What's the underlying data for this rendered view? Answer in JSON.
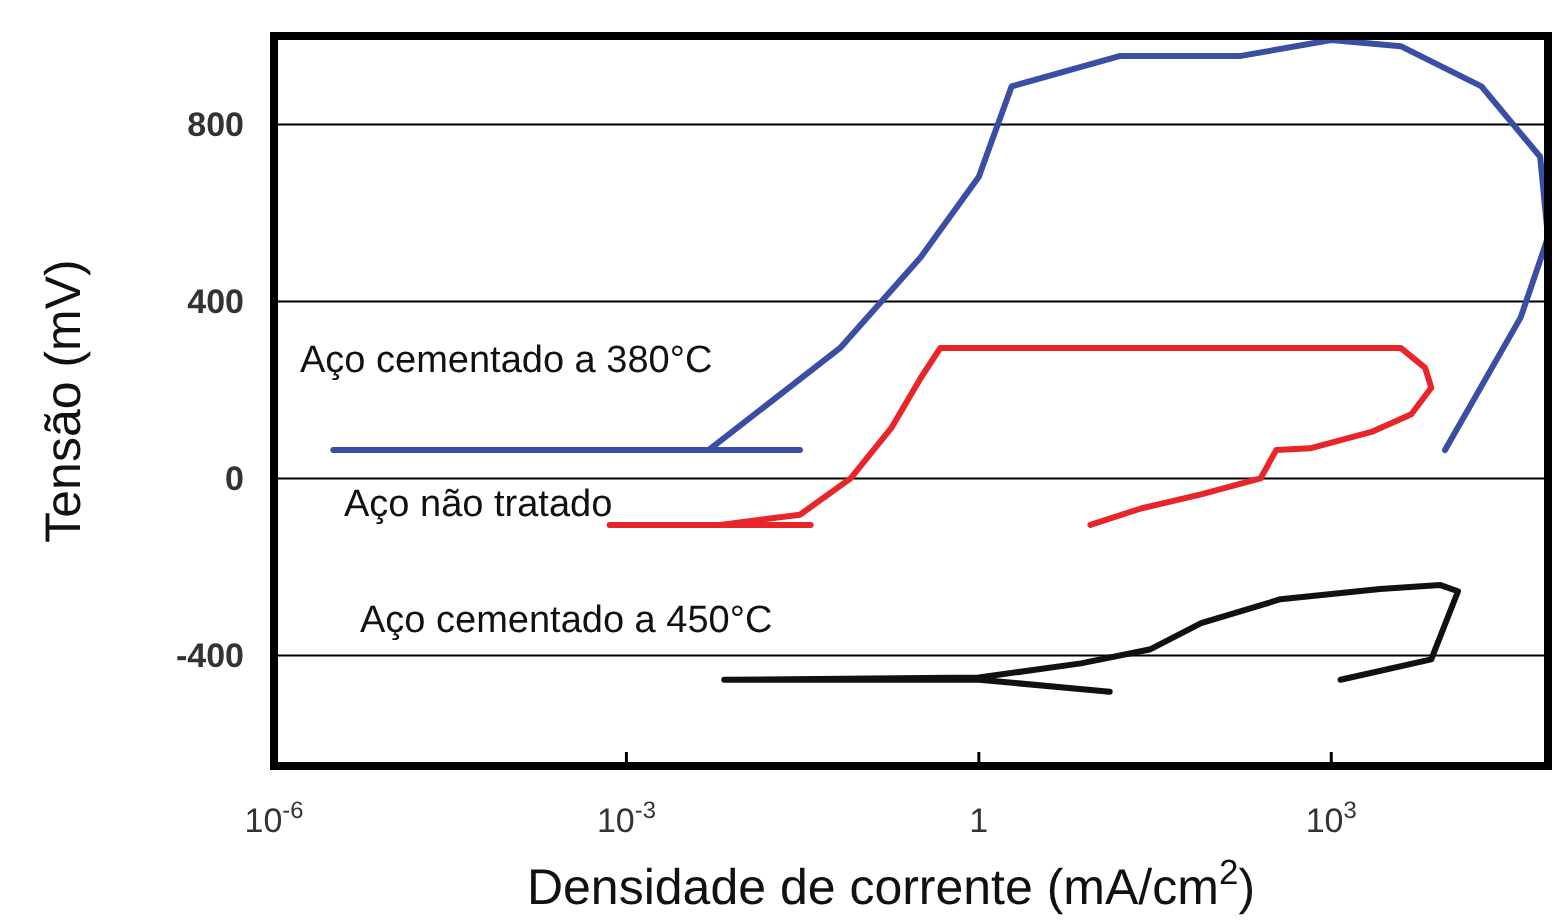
{
  "chart_data": {
    "type": "line",
    "xlabel": "Densidade de corrente (mA/cm$^{2}$)",
    "ylabel": "Tensão (mV)",
    "log": "x",
    "xlim": [
      1e-06,
      70000
    ],
    "ylim": [
      -650,
      1000
    ],
    "xticks": [
      {
        "value": 1e-06,
        "label": "10$^{-6}$"
      },
      {
        "value": 0.001,
        "label": "10$^{-3}$"
      },
      1,
      {
        "value": 1000,
        "label": "10$^{3}$"
      }
    ],
    "yticks": [
      -400,
      0,
      400,
      800
    ],
    "grid": "y",
    "marker": "none",
    "line_style": "solid",
    "series": [
      {
        "name": "Aço cementado a 380°C",
        "color": "#3a4fa3",
        "x": [
          3.2e-06,
          0.03,
          0.005,
          0.066,
          0.32,
          1.0,
          1.9,
          16,
          170,
          1000,
          3900,
          19000,
          60000,
          70000,
          41000,
          9300
        ],
        "values": [
          64,
          64,
          64,
          295,
          500,
          682,
          886,
          955,
          955,
          991,
          977,
          886,
          727,
          545,
          364,
          64
        ]
      },
      {
        "name": "Aço não tratado",
        "color": "#e8262a",
        "x": [
          0.00072,
          0.037,
          0.0063,
          0.03,
          0.081,
          0.18,
          0.32,
          0.47,
          3900,
          6300,
          7100,
          4800,
          2200,
          660,
          340,
          250,
          78,
          24,
          8.9
        ],
        "values": [
          -105,
          -105,
          -105,
          -82,
          0,
          114,
          227,
          295,
          295,
          250,
          205,
          145,
          105,
          68,
          64,
          0,
          -36,
          -68,
          -105
        ]
      },
      {
        "name": "Aço cementado a 450°C",
        "color": "#111111",
        "x": [
          13,
          1.0,
          0.0068,
          1.0,
          7.4,
          29,
          78,
          370,
          2600,
          8500,
          12000,
          7100,
          1200
        ],
        "values": [
          -482,
          -455,
          -455,
          -450,
          -418,
          -386,
          -327,
          -273,
          -250,
          -241,
          -255,
          -409,
          -455
        ]
      }
    ]
  }
}
